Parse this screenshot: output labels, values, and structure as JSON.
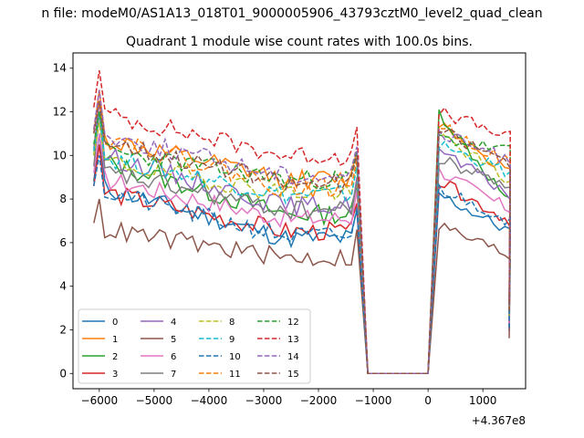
{
  "chart_data": {
    "type": "line",
    "suptitle": "n file: modeM0/AS1A13_018T01_9000005906_43793cztM0_level2_quad_clean",
    "title": "Quadrant 1 module wise count rates with 100.0s bins.",
    "xlabel": "",
    "ylabel": "",
    "x_offset_label": "+4.367e8",
    "xlim": [
      -6480,
      1780
    ],
    "ylim": [
      -0.7,
      14.7
    ],
    "xticks": [
      -6000,
      -5000,
      -4000,
      -3000,
      -2000,
      -1000,
      0,
      1000
    ],
    "xtick_labels": [
      "−6000",
      "−5000",
      "−4000",
      "−3000",
      "−2000",
      "−1000",
      "0",
      "1000"
    ],
    "yticks": [
      0,
      2,
      4,
      6,
      8,
      10,
      12,
      14
    ],
    "ytick_labels": [
      "0",
      "2",
      "4",
      "6",
      "8",
      "10",
      "12",
      "14"
    ],
    "legend_loc": "lower left",
    "legend_ncol": 4,
    "x_bins": {
      "segment1_start": -6100,
      "segment1_end": -1300,
      "gap_end": 0,
      "segment2_start": 200,
      "segment2_end": 1450,
      "step": 100
    },
    "series": [
      {
        "name": "0",
        "color": "#1f77b4",
        "dash": "solid",
        "peak": 11.0,
        "start": 8.8,
        "end": 6.5,
        "second_start": 8.2,
        "second_end": 6.5
      },
      {
        "name": "1",
        "color": "#ff7f0e",
        "dash": "solid",
        "peak": 13.0,
        "start": 11.0,
        "end": 9.2,
        "second_start": 11.5,
        "second_end": 9.2
      },
      {
        "name": "2",
        "color": "#2ca02c",
        "dash": "solid",
        "peak": 12.0,
        "start": 10.0,
        "end": 7.6,
        "second_start": 12.0,
        "second_end": 7.8
      },
      {
        "name": "3",
        "color": "#d62728",
        "dash": "solid",
        "peak": 10.5,
        "start": 8.6,
        "end": 6.8,
        "second_start": 8.8,
        "second_end": 7.0
      },
      {
        "name": "4",
        "color": "#9467bd",
        "dash": "solid",
        "peak": 12.5,
        "start": 10.3,
        "end": 8.0,
        "second_start": 10.2,
        "second_end": 8.2
      },
      {
        "name": "5",
        "color": "#8c564b",
        "dash": "solid",
        "peak": 8.0,
        "start": 6.9,
        "end": 5.6,
        "second_start": 6.8,
        "second_end": 5.4
      },
      {
        "name": "6",
        "color": "#e377c2",
        "dash": "solid",
        "peak": 11.0,
        "start": 9.2,
        "end": 7.4,
        "second_start": 9.3,
        "second_end": 7.5
      },
      {
        "name": "7",
        "color": "#7f7f7f",
        "dash": "solid",
        "peak": 12.0,
        "start": 9.5,
        "end": 7.8,
        "second_start": 9.8,
        "second_end": 8.6
      },
      {
        "name": "8",
        "color": "#bcbd22",
        "dash": "dashed",
        "peak": 11.5,
        "start": 10.0,
        "end": 8.6,
        "second_start": 11.0,
        "second_end": 8.8
      },
      {
        "name": "9",
        "color": "#17becf",
        "dash": "dashed",
        "peak": 12.0,
        "start": 10.2,
        "end": 8.5,
        "second_start": 10.5,
        "second_end": 9.2
      },
      {
        "name": "10",
        "color": "#1f77b4",
        "dash": "dashed",
        "peak": 10.0,
        "start": 8.6,
        "end": 6.6,
        "second_start": 8.5,
        "second_end": 7.0
      },
      {
        "name": "11",
        "color": "#ff7f0e",
        "dash": "dashed",
        "peak": 12.5,
        "start": 11.2,
        "end": 8.8,
        "second_start": 11.4,
        "second_end": 9.6
      },
      {
        "name": "12",
        "color": "#2ca02c",
        "dash": "dashed",
        "peak": 12.0,
        "start": 10.5,
        "end": 9.2,
        "second_start": 10.8,
        "second_end": 10.2
      },
      {
        "name": "13",
        "color": "#d62728",
        "dash": "dashed",
        "peak": 13.9,
        "start": 12.2,
        "end": 10.3,
        "second_start": 12.0,
        "second_end": 10.8
      },
      {
        "name": "14",
        "color": "#9467bd",
        "dash": "dashed",
        "peak": 13.0,
        "start": 11.2,
        "end": 9.4,
        "second_start": 11.0,
        "second_end": 9.8
      },
      {
        "name": "15",
        "color": "#8c564b",
        "dash": "dashed",
        "peak": 12.5,
        "start": 11.0,
        "end": 9.0,
        "second_start": 11.2,
        "second_end": 9.6
      }
    ]
  }
}
